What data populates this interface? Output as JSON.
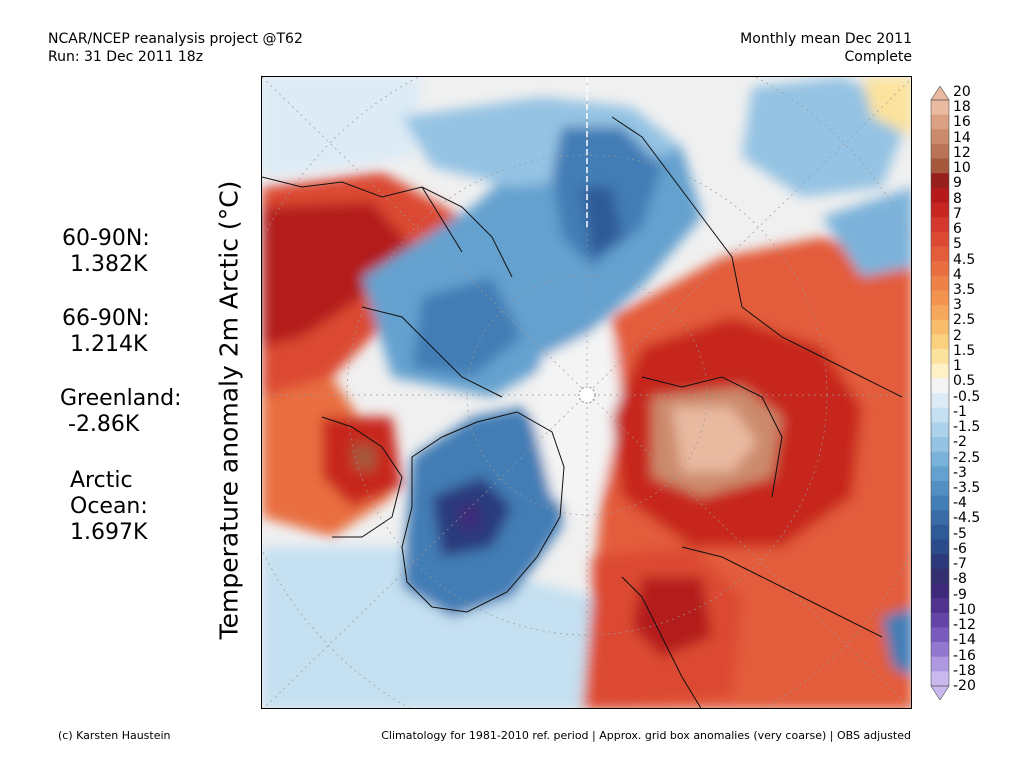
{
  "header": {
    "line1_left": "NCAR/NCEP reanalysis project @T62",
    "line2_left": "Run: 31 Dec 2011 18z",
    "line1_right": "Monthly mean Dec 2011",
    "line2_right": "Complete"
  },
  "y_label": "Temperature anomaly 2m Arctic (°C)",
  "stats": [
    {
      "label": "60-90N:",
      "value": "1.382K"
    },
    {
      "label": "66-90N:",
      "value": "1.214K"
    },
    {
      "label": "Greenland:",
      "value": "-2.86K"
    },
    {
      "label": "Arctic",
      "label2": "Ocean:",
      "value": "1.697K"
    }
  ],
  "colorbar": {
    "labels": [
      "20",
      "18",
      "16",
      "14",
      "12",
      "10",
      "9",
      "8",
      "7",
      "6",
      "5",
      "4.5",
      "4",
      "3.5",
      "3",
      "2.5",
      "2",
      "1.5",
      "1",
      "0.5",
      "-0.5",
      "-1",
      "-1.5",
      "-2",
      "-2.5",
      "-3",
      "-3.5",
      "-4",
      "-4.5",
      "-5",
      "-6",
      "-7",
      "-8",
      "-9",
      "-10",
      "-12",
      "-14",
      "-16",
      "-18",
      "-20"
    ],
    "colors": [
      "#e9b9a0",
      "#dba083",
      "#cc8a6c",
      "#b97356",
      "#a5583c",
      "#961f1b",
      "#b41a1a",
      "#c7251f",
      "#d4372b",
      "#dc4a33",
      "#e35c3b",
      "#e96e41",
      "#ee8148",
      "#f29450",
      "#f5a85b",
      "#f8bc6b",
      "#fad081",
      "#fce39d",
      "#fdf2c7",
      "#f4f4f4",
      "#dcebf6",
      "#c5e0f1",
      "#add2eb",
      "#94c3e3",
      "#7bb2da",
      "#65a1cf",
      "#528fc3",
      "#437db5",
      "#396ba7",
      "#2f5a98",
      "#2a4a8a",
      "#2c3a7c",
      "#34306f",
      "#3e2a7a",
      "#50318f",
      "#6445a5",
      "#7a5cbd",
      "#9378d0",
      "#ae98e0",
      "#c9b9ee"
    ]
  },
  "footer": {
    "left": "(c) Karsten Haustein",
    "right": "Climatology for 1981-2010 ref. period | Approx. grid box anomalies (very coarse) | OBS adjusted"
  },
  "map": {
    "projection": "north polar stereographic",
    "regions": [
      "north-america-warm",
      "canadian-arctic-cold",
      "greenland-cold",
      "siberia-very-warm",
      "scandinavia-warm",
      "alaska-cold"
    ]
  }
}
